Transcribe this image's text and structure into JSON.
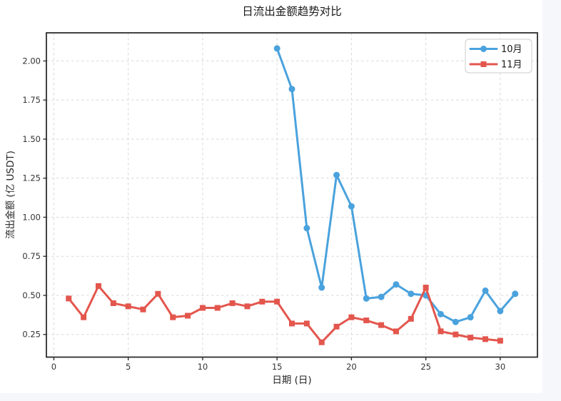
{
  "page": {
    "background_color": "#f5f7fa",
    "figure_background_color": "#ffffff"
  },
  "chart_data": {
    "type": "line",
    "title": "日流出金额趋势对比",
    "xlabel": "日期 (日)",
    "ylabel": "流出金额 (亿 USDT)",
    "xlim": [
      -0.5,
      32.5
    ],
    "ylim": [
      0.105,
      2.18
    ],
    "xticks": [
      0,
      5,
      10,
      15,
      20,
      25,
      30
    ],
    "yticks": [
      0.25,
      0.5,
      0.75,
      1.0,
      1.25,
      1.5,
      1.75,
      2.0
    ],
    "grid": true,
    "grid_style": "dashed",
    "grid_color": "#d9d9d9",
    "spine_color": "#2e2e2e",
    "legend_position": "top-right",
    "series": [
      {
        "name": "10月",
        "color": "#4aa2dd",
        "marker": "circle",
        "x": [
          15,
          16,
          17,
          18,
          19,
          20,
          21,
          22,
          23,
          24,
          25,
          26,
          27,
          28,
          29,
          30,
          31
        ],
        "y": [
          2.08,
          1.82,
          0.93,
          0.55,
          1.27,
          1.07,
          0.48,
          0.49,
          0.57,
          0.51,
          0.5,
          0.38,
          0.33,
          0.36,
          0.53,
          0.4,
          0.51
        ]
      },
      {
        "name": "11月",
        "color": "#e3564d",
        "marker": "square",
        "x": [
          1,
          2,
          3,
          4,
          5,
          6,
          7,
          8,
          9,
          10,
          11,
          12,
          13,
          14,
          15,
          16,
          17,
          18,
          19,
          20,
          21,
          22,
          23,
          24,
          25,
          26,
          27,
          28,
          29,
          30
        ],
        "y": [
          0.48,
          0.36,
          0.56,
          0.45,
          0.43,
          0.41,
          0.51,
          0.36,
          0.37,
          0.42,
          0.42,
          0.45,
          0.43,
          0.46,
          0.46,
          0.32,
          0.32,
          0.2,
          0.3,
          0.36,
          0.34,
          0.31,
          0.27,
          0.35,
          0.55,
          0.27,
          0.25,
          0.23,
          0.22,
          0.21
        ]
      }
    ]
  }
}
